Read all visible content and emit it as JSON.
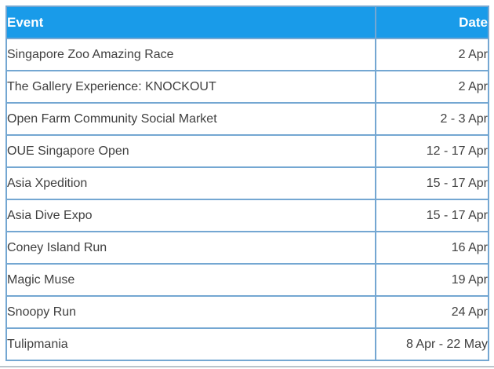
{
  "table": {
    "columns": [
      {
        "label": "Event"
      },
      {
        "label": "Date"
      }
    ],
    "rows": [
      {
        "event": "Singapore Zoo Amazing Race",
        "date": "2 Apr"
      },
      {
        "event": "The Gallery Experience: KNOCKOUT",
        "date": "2 Apr"
      },
      {
        "event": "Open Farm Community Social Market",
        "date": "2 - 3 Apr"
      },
      {
        "event": "OUE Singapore Open",
        "date": "12 - 17 Apr"
      },
      {
        "event": "Asia Xpedition",
        "date": "15 - 17 Apr"
      },
      {
        "event": "Asia Dive Expo",
        "date": "15 - 17 Apr"
      },
      {
        "event": "Coney Island Run",
        "date": "16 Apr"
      },
      {
        "event": "Magic Muse",
        "date": "19 Apr"
      },
      {
        "event": "Snoopy Run",
        "date": "24 Apr"
      },
      {
        "event": "Tulipmania",
        "date": "8 Apr - 22 May"
      }
    ],
    "colors": {
      "header_bg": "#199be9",
      "header_text": "#ffffff",
      "border": "#74a7d2",
      "header_divider": "#8fc8ef",
      "row_bg": "#ffffff",
      "text": "#3f3f3f",
      "bottom_rule": "#a3b1ba"
    }
  },
  "chart_data": {
    "type": "table",
    "title": "",
    "columns": [
      "Event",
      "Date"
    ],
    "rows": [
      [
        "Singapore Zoo Amazing Race",
        "2 Apr"
      ],
      [
        "The Gallery Experience: KNOCKOUT",
        "2 Apr"
      ],
      [
        "Open Farm Community Social Market",
        "2 - 3 Apr"
      ],
      [
        "OUE Singapore Open",
        "12 - 17 Apr"
      ],
      [
        "Asia Xpedition",
        "15 - 17 Apr"
      ],
      [
        "Asia Dive Expo",
        "15 - 17 Apr"
      ],
      [
        "Coney Island Run",
        "16 Apr"
      ],
      [
        "Magic Muse",
        "19 Apr"
      ],
      [
        "Snoopy Run",
        "24 Apr"
      ],
      [
        "Tulipmania",
        "8 Apr - 22 May"
      ]
    ],
    "layout_hints": {
      "header_fill": "#199be9",
      "grid": true,
      "event_column_align": "left",
      "date_column_align": "right"
    }
  }
}
